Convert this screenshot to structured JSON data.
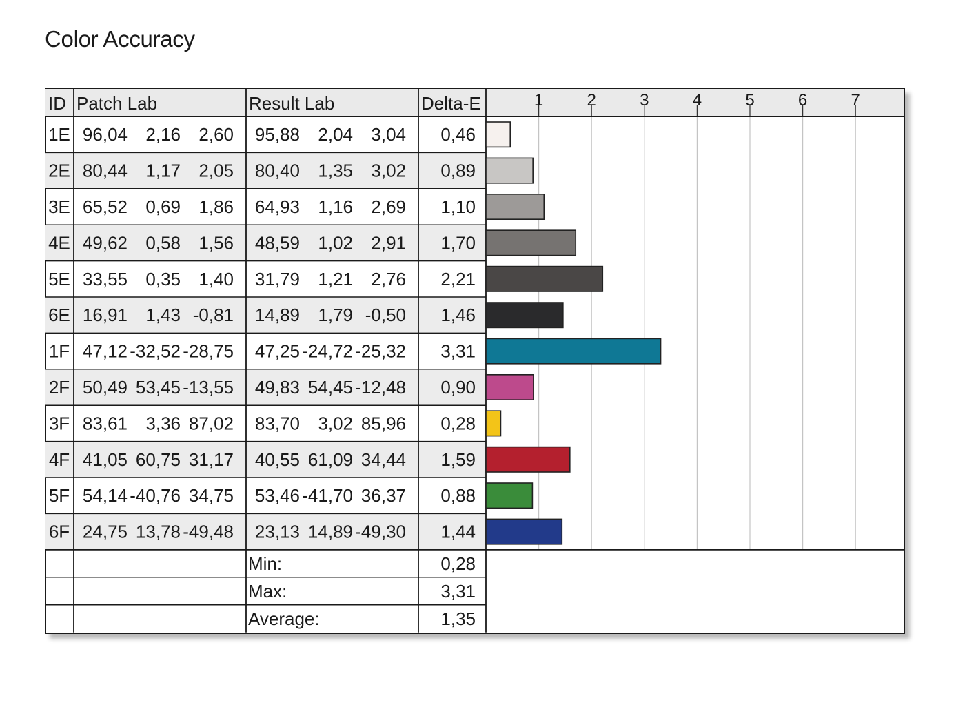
{
  "title": "Color Accuracy",
  "table": {
    "headers": {
      "id": "ID",
      "patch": "Patch Lab",
      "result": "Result Lab",
      "delta": "Delta-E"
    },
    "rows": [
      {
        "id": "1E",
        "patch": [
          "96,04",
          "2,16",
          "2,60"
        ],
        "result": [
          "95,88",
          "2,04",
          "3,04"
        ],
        "delta": "0,46",
        "color": "#f6f1ee"
      },
      {
        "id": "2E",
        "patch": [
          "80,44",
          "1,17",
          "2,05"
        ],
        "result": [
          "80,40",
          "1,35",
          "3,02"
        ],
        "delta": "0,89",
        "color": "#c8c6c4"
      },
      {
        "id": "3E",
        "patch": [
          "65,52",
          "0,69",
          "1,86"
        ],
        "result": [
          "64,93",
          "1,16",
          "2,69"
        ],
        "delta": "1,10",
        "color": "#9d9a98"
      },
      {
        "id": "4E",
        "patch": [
          "49,62",
          "0,58",
          "1,56"
        ],
        "result": [
          "48,59",
          "1,02",
          "2,91"
        ],
        "delta": "1,70",
        "color": "#767371"
      },
      {
        "id": "5E",
        "patch": [
          "33,55",
          "0,35",
          "1,40"
        ],
        "result": [
          "31,79",
          "1,21",
          "2,76"
        ],
        "delta": "2,21",
        "color": "#4a4746"
      },
      {
        "id": "6E",
        "patch": [
          "16,91",
          "1,43",
          "-0,81"
        ],
        "result": [
          "14,89",
          "1,79",
          "-0,50"
        ],
        "delta": "1,46",
        "color": "#2a2a2c"
      },
      {
        "id": "1F",
        "patch": [
          "47,12",
          "-32,52",
          "-28,75"
        ],
        "result": [
          "47,25",
          "-24,72",
          "-25,32"
        ],
        "delta": "3,31",
        "color": "#0f7895"
      },
      {
        "id": "2F",
        "patch": [
          "50,49",
          "53,45",
          "-13,55"
        ],
        "result": [
          "49,83",
          "54,45",
          "-12,48"
        ],
        "delta": "0,90",
        "color": "#bd4a8c"
      },
      {
        "id": "3F",
        "patch": [
          "83,61",
          "3,36",
          "87,02"
        ],
        "result": [
          "83,70",
          "3,02",
          "85,96"
        ],
        "delta": "0,28",
        "color": "#f3c418"
      },
      {
        "id": "4F",
        "patch": [
          "41,05",
          "60,75",
          "31,17"
        ],
        "result": [
          "40,55",
          "61,09",
          "34,44"
        ],
        "delta": "1,59",
        "color": "#b4202e"
      },
      {
        "id": "5F",
        "patch": [
          "54,14",
          "-40,76",
          "34,75"
        ],
        "result": [
          "53,46",
          "-41,70",
          "36,37"
        ],
        "delta": "0,88",
        "color": "#3a8c3a"
      },
      {
        "id": "6F",
        "patch": [
          "24,75",
          "13,78",
          "-49,48"
        ],
        "result": [
          "23,13",
          "14,89",
          "-49,30"
        ],
        "delta": "1,44",
        "color": "#223a8a"
      }
    ],
    "summary": [
      {
        "label": "Min:",
        "value": "0,28"
      },
      {
        "label": "Max:",
        "value": "3,31"
      },
      {
        "label": "Average:",
        "value": "1,35"
      }
    ]
  },
  "chart_data": {
    "type": "bar",
    "orientation": "horizontal",
    "categories": [
      "1E",
      "2E",
      "3E",
      "4E",
      "5E",
      "6E",
      "1F",
      "2F",
      "3F",
      "4F",
      "5F",
      "6F"
    ],
    "values": [
      0.46,
      0.89,
      1.1,
      1.7,
      2.21,
      1.46,
      3.31,
      0.9,
      0.28,
      1.59,
      0.88,
      1.44
    ],
    "bar_colors": [
      "#f6f1ee",
      "#c8c6c4",
      "#9d9a98",
      "#767371",
      "#4a4746",
      "#2a2a2c",
      "#0f7895",
      "#bd4a8c",
      "#f3c418",
      "#b4202e",
      "#3a8c3a",
      "#223a8a"
    ],
    "ticks": [
      "1",
      "2",
      "3",
      "4",
      "5",
      "6",
      "7"
    ],
    "xlim": [
      0,
      7.9
    ],
    "grid": true,
    "ylabel": "Delta-E"
  }
}
